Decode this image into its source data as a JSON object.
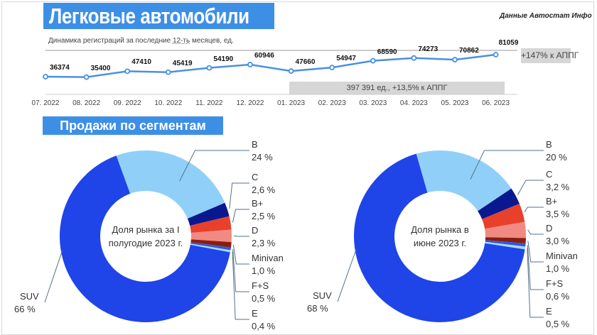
{
  "header": {
    "title": "Легковые автомобили",
    "source": "Данные Автостат Инфо",
    "subtitle_pre": "Динамика регистраций за последние ",
    "subtitle_u": "12-ть",
    "subtitle_post": " месяцев, ед."
  },
  "chart_data": [
    {
      "type": "line",
      "categories": [
        "07. 2022",
        "08. 2022",
        "09. 2022",
        "10. 2022",
        "11. 2022",
        "12. 2022",
        "01. 2023",
        "02. 2023",
        "03. 2023",
        "04. 2023",
        "05. 2023",
        "06. 2023"
      ],
      "values": [
        36374,
        35400,
        47410,
        45419,
        54190,
        60946,
        47660,
        54947,
        68590,
        74273,
        70862,
        81059
      ],
      "annotations": {
        "yoy": "+147% к АППГ",
        "total": "397 391 ед., +13,5% к АППГ"
      },
      "color": "#4a90e2"
    },
    {
      "type": "pie",
      "title": "Продажи по сегментам",
      "center_line1": "Доля рынка за  I",
      "center_line2": "полугодие 2023 г.",
      "slices": [
        {
          "name": "B",
          "value": 24,
          "label": "24 %"
        },
        {
          "name": "C",
          "value": 2.6,
          "label": "2,6 %"
        },
        {
          "name": "B+",
          "value": 2.5,
          "label": "2,5 %"
        },
        {
          "name": "D",
          "value": 2.3,
          "label": "2,3 %"
        },
        {
          "name": "Minivan",
          "value": 1.0,
          "label": "1,0 %"
        },
        {
          "name": "F+S",
          "value": 0.5,
          "label": "0,5 %"
        },
        {
          "name": "E",
          "value": 0.4,
          "label": "0,4 %"
        },
        {
          "name": "SUV",
          "value": 66,
          "label": "66 %"
        }
      ]
    },
    {
      "type": "pie",
      "center_line1": "Доля рынка в",
      "center_line2": "июне 2023 г.",
      "slices": [
        {
          "name": "B",
          "value": 20,
          "label": "20 %"
        },
        {
          "name": "C",
          "value": 3.2,
          "label": "3,2 %"
        },
        {
          "name": "B+",
          "value": 3.5,
          "label": "3,5 %"
        },
        {
          "name": "D",
          "value": 3.0,
          "label": "3,0 %"
        },
        {
          "name": "Minivan",
          "value": 1.0,
          "label": "1,0 %"
        },
        {
          "name": "F+S",
          "value": 0.6,
          "label": "0,6 %"
        },
        {
          "name": "E",
          "value": 0.5,
          "label": "0,5 %"
        },
        {
          "name": "SUV",
          "value": 68,
          "label": "68 %"
        }
      ]
    }
  ],
  "colors": {
    "accent": "#3d8fe6",
    "B": "#90d0f8",
    "C": "#0a1890",
    "B+": "#e8402a",
    "D": "#f08a82",
    "Minivan": "#8a1c10",
    "F+S": "#2e58e0",
    "E": "#a8d8f5",
    "SUV": "#1f44e8"
  }
}
